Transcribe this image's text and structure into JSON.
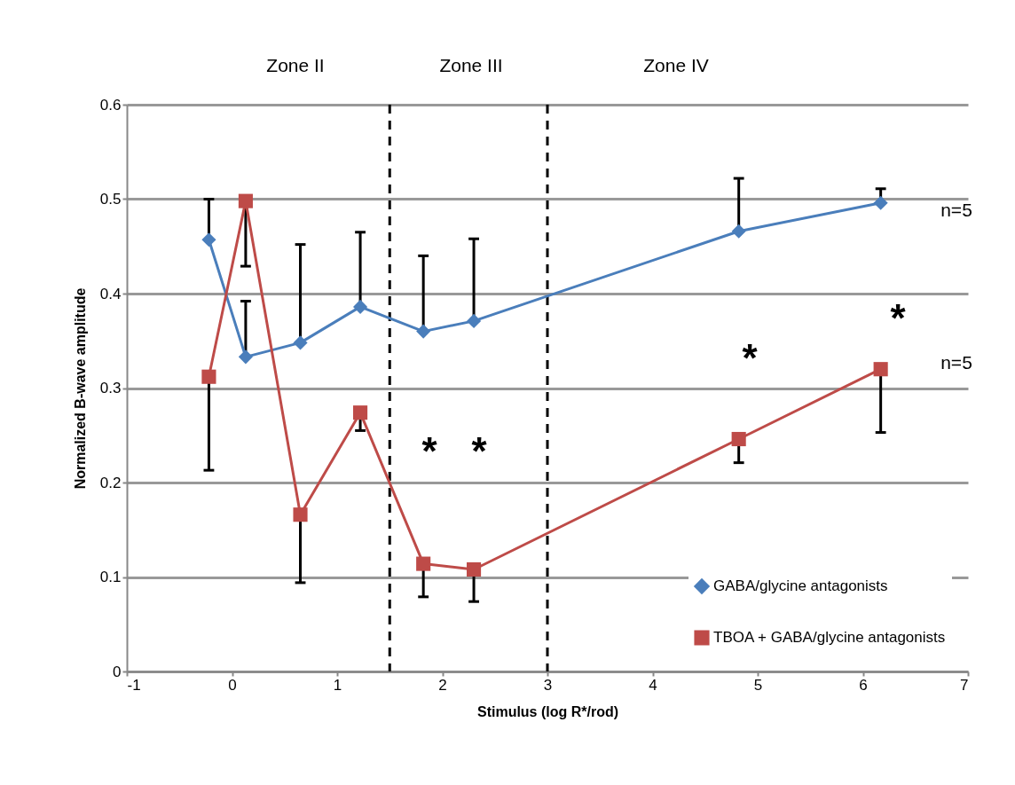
{
  "chart_data": {
    "type": "line",
    "xlabel": "Stimulus (log R*/rod)",
    "ylabel": "Normalized B-wave amplitude",
    "xlim": [
      -1,
      7
    ],
    "xticks": [
      -1,
      0,
      1,
      2,
      3,
      4,
      5,
      6,
      7
    ],
    "ylim": [
      0,
      0.6
    ],
    "yticks": [
      0,
      0.1,
      0.2,
      0.3,
      0.4,
      0.5,
      0.6
    ],
    "grid": "y",
    "legend": "bottom right",
    "x": [
      -0.22,
      0.13,
      0.65,
      1.22,
      1.82,
      2.3,
      4.82,
      6.17
    ],
    "series": [
      {
        "name": "GABA/glycine antagonists",
        "color": "#4a7ebb",
        "marker": "diamond",
        "values": [
          0.457,
          0.333,
          0.348,
          0.386,
          0.36,
          0.371,
          0.466,
          0.496
        ],
        "errors": [
          [
            0.457,
            0.5
          ],
          [
            0.333,
            0.392
          ],
          [
            0.348,
            0.452
          ],
          [
            0.386,
            0.465
          ],
          [
            0.36,
            0.44
          ],
          [
            0.371,
            0.458
          ],
          [
            0.466,
            0.522
          ],
          [
            0.496,
            0.511
          ]
        ]
      },
      {
        "name": "TBOA + GABA/glycine antagonists",
        "color": "#be4b48",
        "marker": "square",
        "values": [
          0.312,
          0.498,
          0.166,
          0.274,
          0.114,
          0.108,
          0.246,
          0.32
        ],
        "errors": [
          [
            0.213,
            0.312
          ],
          [
            0.429,
            0.498
          ],
          [
            0.094,
            0.166
          ],
          [
            0.255,
            0.274
          ],
          [
            0.079,
            0.114
          ],
          [
            0.074,
            0.108
          ],
          [
            0.221,
            0.246
          ],
          [
            0.253,
            0.32
          ]
        ]
      }
    ],
    "ref_lines": [
      {
        "axis": "x",
        "value": 1.5,
        "color": "#000000",
        "line_style": "dashed"
      },
      {
        "axis": "x",
        "value": 3,
        "color": "#000000",
        "line_style": "dashed"
      }
    ],
    "annotations": [
      "Zone II",
      "Zone III",
      "Zone IV",
      "*",
      "*",
      "*",
      "*",
      "n=5",
      "n=5"
    ]
  }
}
